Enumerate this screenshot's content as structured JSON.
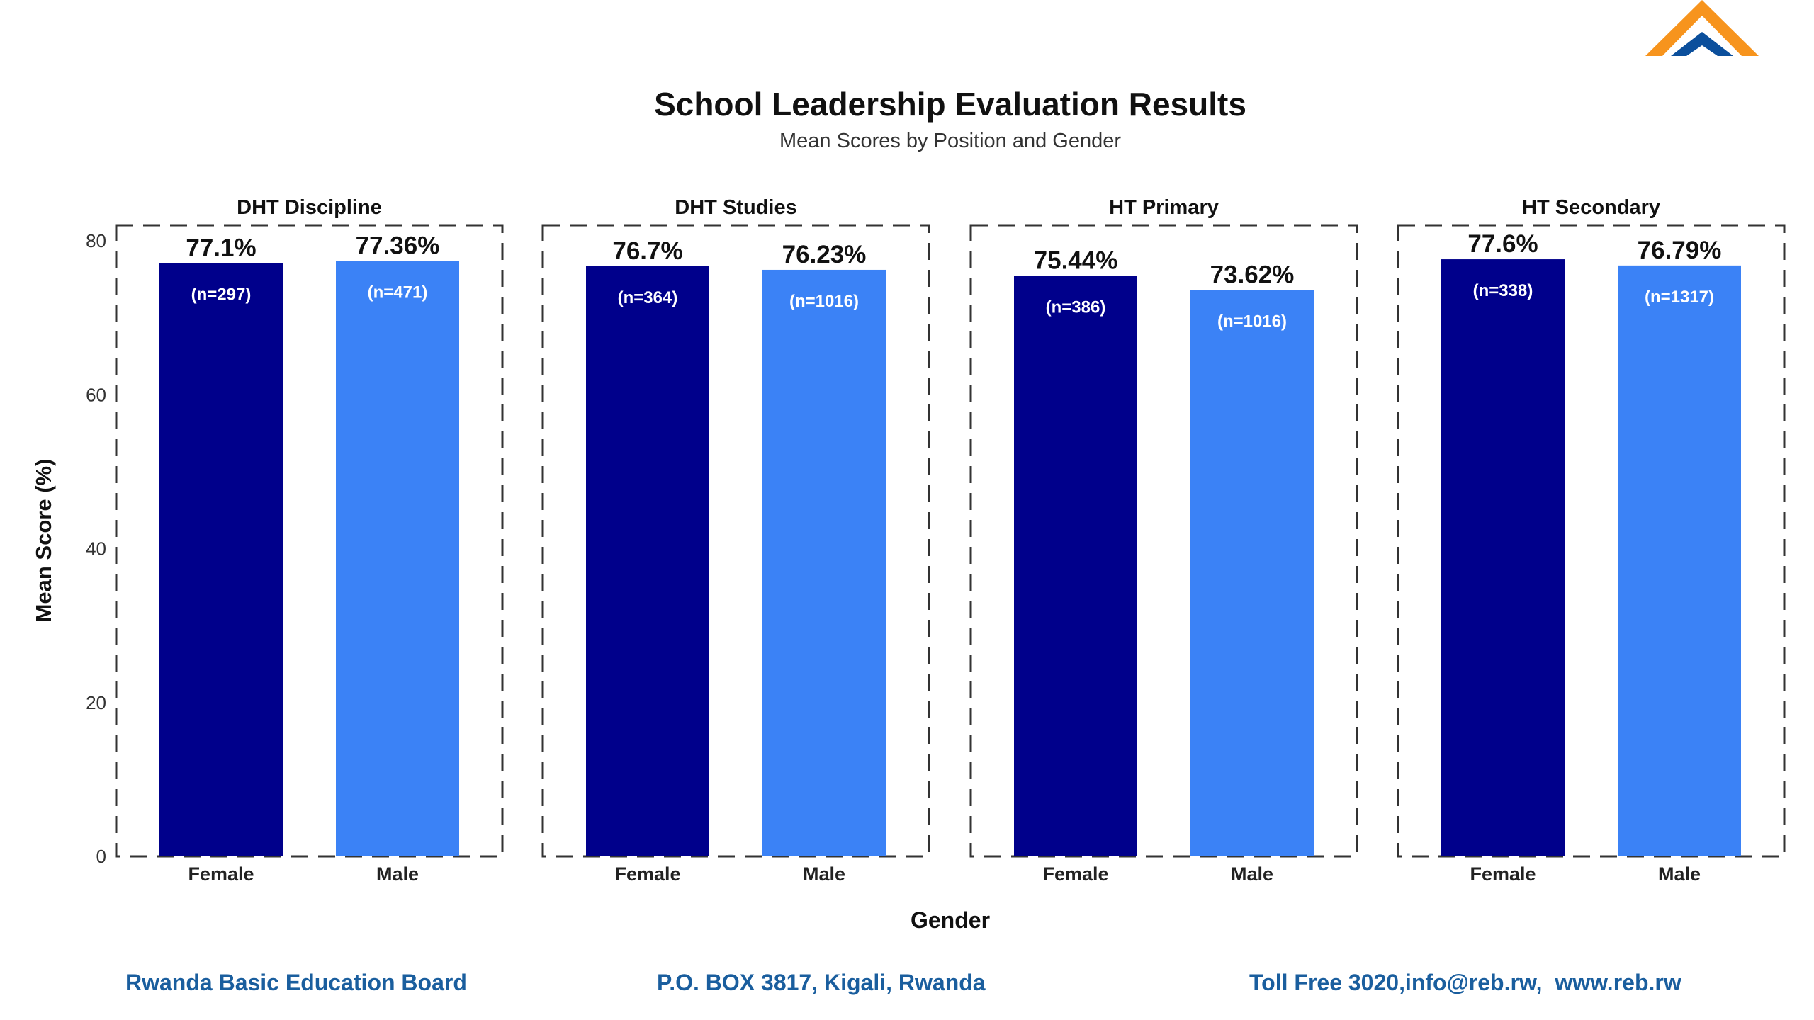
{
  "chart_data": {
    "type": "bar",
    "title": "School Leadership Evaluation Results",
    "subtitle": "Mean Scores by Position and Gender",
    "xlabel": "Gender",
    "ylabel": "Mean Score (%)",
    "ylim": [
      0,
      80
    ],
    "yticks": [
      0,
      20,
      40,
      60,
      80
    ],
    "grid": false,
    "categories": [
      "Female",
      "Male"
    ],
    "colors": {
      "Female": "#00008B",
      "Male": "#3B82F6"
    },
    "panels": [
      {
        "name": "DHT Discipline",
        "values": [
          77.1,
          77.36
        ],
        "labels": [
          "77.1%",
          "77.36%"
        ],
        "n": [
          "(n=297)",
          "(n=471)"
        ]
      },
      {
        "name": "DHT Studies",
        "values": [
          76.7,
          76.23
        ],
        "labels": [
          "76.7%",
          "76.23%"
        ],
        "n": [
          "(n=364)",
          "(n=1016)"
        ]
      },
      {
        "name": "HT Primary",
        "values": [
          75.44,
          73.62
        ],
        "labels": [
          "75.44%",
          "73.62%"
        ],
        "n": [
          "(n=386)",
          "(n=1016)"
        ]
      },
      {
        "name": "HT Secondary",
        "values": [
          77.6,
          76.79
        ],
        "labels": [
          "77.6%",
          "76.79%"
        ],
        "n": [
          "(n=338)",
          "(n=1317)"
        ]
      }
    ]
  },
  "footer": {
    "org": "Rwanda Basic Education Board",
    "address": "P.O. BOX 3817, Kigali, Rwanda",
    "contact": "Toll Free 3020,info@reb.rw,  www.reb.rw",
    "color": "#1A5E9E"
  },
  "logo": {
    "colors": [
      "#F7941D",
      "#0B4F9C"
    ]
  }
}
